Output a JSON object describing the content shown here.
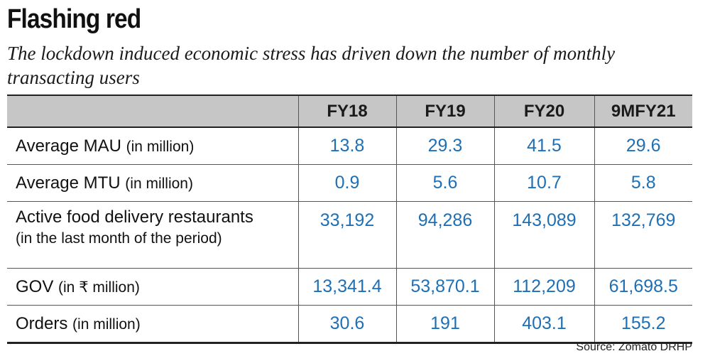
{
  "header": {
    "title": "Flashing red",
    "subtitle": "The lockdown induced economic stress has driven down the number of monthly transacting users"
  },
  "table": {
    "columns": [
      "",
      "FY18",
      "FY19",
      "FY20",
      "9MFY21"
    ],
    "rows": [
      {
        "label": "Average MAU",
        "unit": "(in million)",
        "sublabel": "",
        "values": [
          "13.8",
          "29.3",
          "41.5",
          "29.6"
        ]
      },
      {
        "label": "Average MTU",
        "unit": "(in million)",
        "sublabel": "",
        "values": [
          "0.9",
          "5.6",
          "10.7",
          "5.8"
        ]
      },
      {
        "label": "Active food delivery restaurants",
        "unit": "",
        "sublabel": "(in the last month of the period)",
        "values": [
          "33,192",
          "94,286",
          "143,089",
          "132,769"
        ]
      },
      {
        "label": "GOV",
        "unit": "(in ₹ million)",
        "sublabel": "",
        "values": [
          "13,341.4",
          "53,870.1",
          "112,209",
          "61,698.5"
        ]
      },
      {
        "label": "Orders",
        "unit": "(in million)",
        "sublabel": "",
        "values": [
          "30.6",
          "191",
          "403.1",
          "155.2"
        ]
      }
    ]
  },
  "footer": {
    "source": "Source: Zomato DRHP"
  },
  "colors": {
    "value_text": "#1f6fb5",
    "header_bg": "#c6c6c6"
  }
}
